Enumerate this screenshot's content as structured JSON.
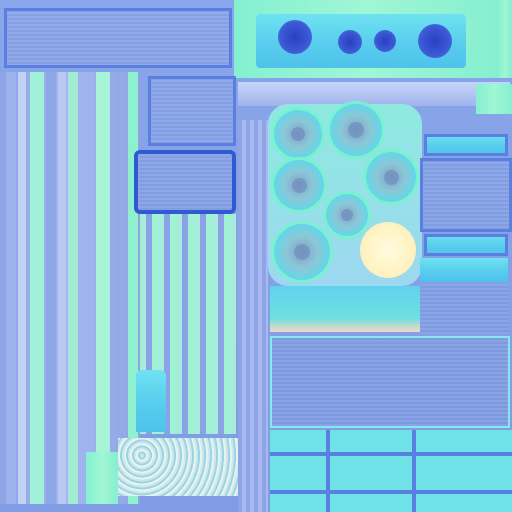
{
  "image": {
    "kind": "texture-atlas",
    "description_colors": {
      "cyan": "#58cdee",
      "mint": "#9ff6d4",
      "lavender": "#8fa4e6",
      "dark_blue_dot": "#2a3fc4",
      "cream_disc": "#fff6c8"
    }
  }
}
